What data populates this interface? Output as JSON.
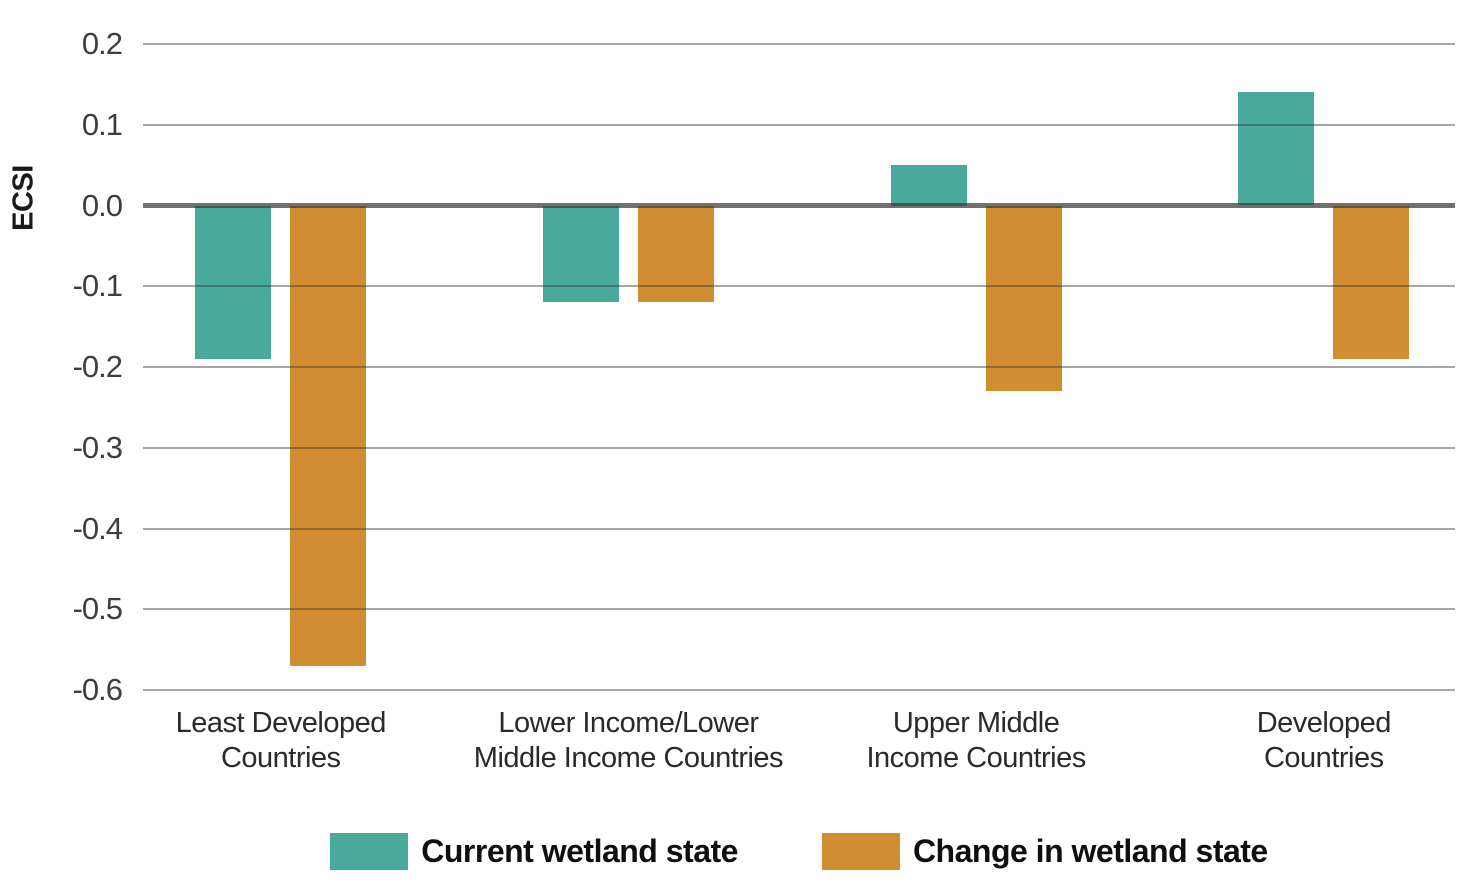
{
  "chart_data": {
    "type": "bar",
    "title": "",
    "ylabel": "ECSI",
    "xlabel": "",
    "ylim": [
      -0.6,
      0.2
    ],
    "yticks": [
      0.2,
      0.1,
      0.0,
      -0.1,
      -0.2,
      -0.3,
      -0.4,
      -0.5,
      -0.6
    ],
    "ytick_labels": [
      "0.2",
      "0.1",
      "0.0",
      "-0.1",
      "-0.2",
      "-0.3",
      "-0.4",
      "-0.5",
      "-0.6"
    ],
    "grid": "horizontal",
    "legend_position": "bottom",
    "categories": [
      "Least Developed Countries",
      "Lower Income/Lower Middle Income Countries",
      "Upper Middle Income Countries",
      "Developed Countries"
    ],
    "category_label_lines": [
      [
        "Least Developed",
        "Countries"
      ],
      [
        "Lower Income/Lower",
        "Middle Income Countries"
      ],
      [
        "Upper Middle",
        "Income Countries"
      ],
      [
        "Developed",
        "Countries"
      ]
    ],
    "series": [
      {
        "name": "Current wetland state",
        "color": "#49A99B",
        "values": [
          -0.19,
          -0.12,
          0.05,
          0.14
        ]
      },
      {
        "name": "Change in wetland state",
        "color": "#D18D31",
        "values": [
          -0.57,
          -0.12,
          -0.23,
          -0.19
        ]
      }
    ]
  },
  "style_colors": {
    "background": "#FFFFFF",
    "gridline": "#9B9B9B",
    "zero_line": "#5A5A5A",
    "tick_label": "#3E3E3E",
    "category_label": "#2A2A2A",
    "legend_text": "#0F0F0F"
  }
}
